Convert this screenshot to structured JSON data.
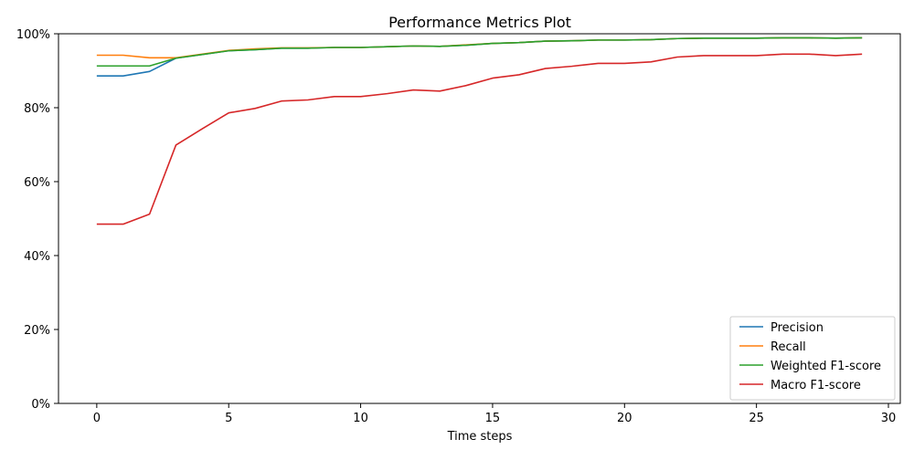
{
  "chart_data": {
    "type": "line",
    "title": "Performance Metrics Plot",
    "xlabel": "Time steps",
    "ylabel": "",
    "xlim": [
      -1.45,
      30.45
    ],
    "ylim": [
      0,
      1
    ],
    "x_ticks": [
      0,
      5,
      10,
      15,
      20,
      25,
      30
    ],
    "x_tick_labels": [
      "0",
      "5",
      "10",
      "15",
      "20",
      "25",
      "30"
    ],
    "y_ticks": [
      0,
      0.2,
      0.4,
      0.6,
      0.8,
      1.0
    ],
    "y_tick_labels": [
      "0%",
      "20%",
      "40%",
      "60%",
      "80%",
      "100%"
    ],
    "grid": false,
    "legend_position": "bottom-right",
    "x": [
      0,
      1,
      2,
      3,
      4,
      5,
      6,
      7,
      8,
      9,
      10,
      11,
      12,
      13,
      14,
      15,
      16,
      17,
      18,
      19,
      20,
      21,
      22,
      23,
      24,
      25,
      26,
      27,
      28,
      29
    ],
    "series": [
      {
        "name": "Precision",
        "color": "#1f77b4",
        "values": [
          0.886,
          0.886,
          0.898,
          0.934,
          0.944,
          0.954,
          0.957,
          0.961,
          0.961,
          0.963,
          0.963,
          0.965,
          0.967,
          0.966,
          0.969,
          0.974,
          0.976,
          0.98,
          0.981,
          0.983,
          0.983,
          0.984,
          0.987,
          0.988,
          0.988,
          0.988,
          0.989,
          0.989,
          0.988,
          0.989
        ]
      },
      {
        "name": "Recall",
        "color": "#ff7f0e",
        "values": [
          0.942,
          0.942,
          0.935,
          0.935,
          0.945,
          0.955,
          0.959,
          0.962,
          0.962,
          0.963,
          0.963,
          0.965,
          0.967,
          0.966,
          0.97,
          0.974,
          0.976,
          0.98,
          0.981,
          0.983,
          0.983,
          0.984,
          0.987,
          0.988,
          0.988,
          0.988,
          0.989,
          0.989,
          0.988,
          0.989
        ]
      },
      {
        "name": "Weighted F1-score",
        "color": "#2ca02c",
        "values": [
          0.913,
          0.913,
          0.913,
          0.934,
          0.944,
          0.954,
          0.957,
          0.961,
          0.961,
          0.963,
          0.963,
          0.965,
          0.967,
          0.966,
          0.969,
          0.974,
          0.976,
          0.98,
          0.981,
          0.983,
          0.983,
          0.984,
          0.987,
          0.988,
          0.988,
          0.988,
          0.989,
          0.989,
          0.988,
          0.989
        ]
      },
      {
        "name": "Macro F1-score",
        "color": "#d62728",
        "values": [
          0.485,
          0.485,
          0.512,
          0.699,
          0.743,
          0.786,
          0.798,
          0.818,
          0.821,
          0.83,
          0.83,
          0.838,
          0.848,
          0.845,
          0.86,
          0.88,
          0.889,
          0.906,
          0.912,
          0.92,
          0.92,
          0.924,
          0.937,
          0.941,
          0.941,
          0.941,
          0.945,
          0.945,
          0.941,
          0.945
        ]
      }
    ]
  }
}
